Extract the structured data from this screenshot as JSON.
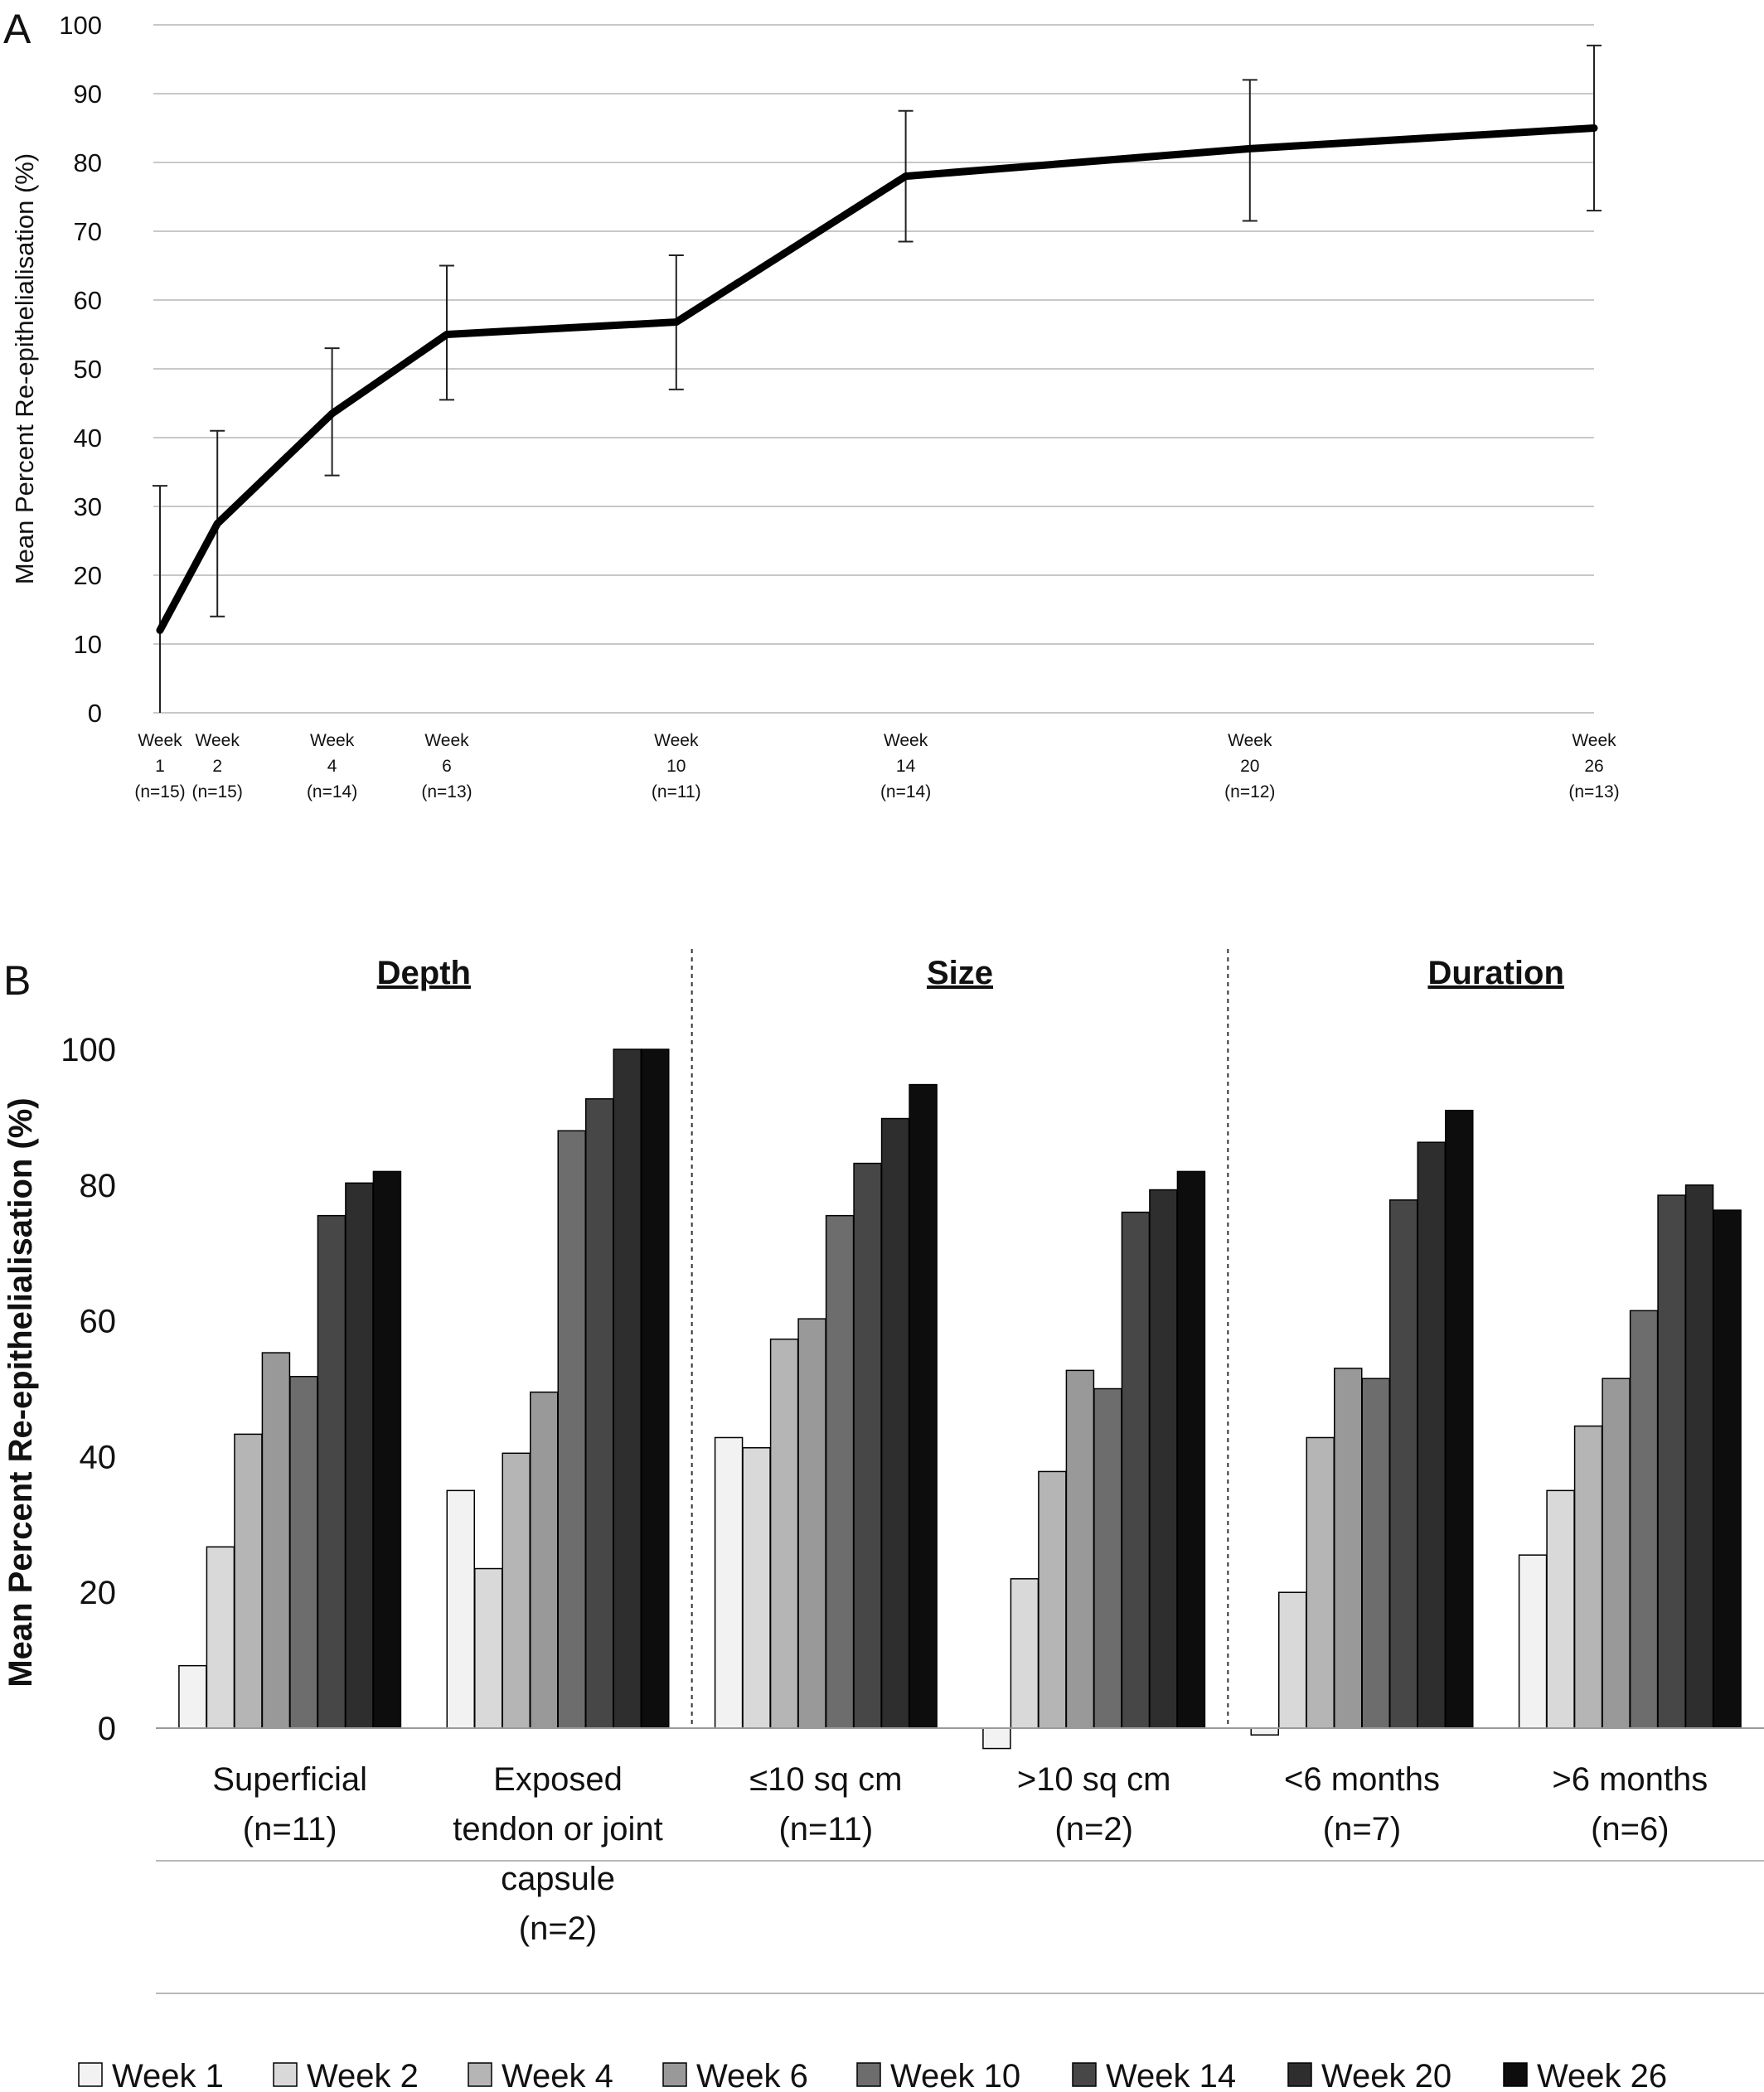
{
  "chart_data": [
    {
      "panel": "A",
      "type": "line",
      "ylabel": "Mean Percent Re-epithelialisation (%)",
      "ylim": [
        0,
        100
      ],
      "yticks": [
        0,
        10,
        20,
        30,
        40,
        50,
        60,
        70,
        80,
        90,
        100
      ],
      "grid": true,
      "x": [
        1,
        2,
        4,
        6,
        10,
        14,
        20,
        26
      ],
      "x_labels": [
        [
          "Week",
          "1",
          "(n=15)"
        ],
        [
          "Week",
          "2",
          "(n=15)"
        ],
        [
          "Week",
          "4",
          "(n=14)"
        ],
        [
          "Week",
          "6",
          "(n=13)"
        ],
        [
          "Week",
          "10",
          "(n=11)"
        ],
        [
          "Week",
          "14",
          "(n=14)"
        ],
        [
          "Week",
          "20",
          "(n=12)"
        ],
        [
          "Week",
          "26",
          "(n=13)"
        ]
      ],
      "series": [
        {
          "values": [
            12,
            27.5,
            43.5,
            55,
            56.8,
            78,
            82,
            85
          ],
          "error_low": [
            0,
            14,
            34.5,
            45.5,
            47,
            68.5,
            71.5,
            73
          ],
          "error_high": [
            33,
            41,
            53,
            65,
            66.5,
            87.5,
            92,
            97
          ],
          "color": "#000000"
        }
      ]
    },
    {
      "panel": "B",
      "type": "bar",
      "ylabel": "Mean Percent Re-epithelialisation (%)",
      "ylim": [
        -5,
        100
      ],
      "yticks": [
        0,
        20,
        40,
        60,
        80,
        100
      ],
      "grid": false,
      "legend_position": "bottom",
      "groups": [
        {
          "title": "Depth",
          "categories": [
            0,
            1
          ]
        },
        {
          "title": "Size",
          "categories": [
            2,
            3
          ]
        },
        {
          "title": "Duration",
          "categories": [
            4,
            5
          ]
        }
      ],
      "categories": [
        [
          "Superficial",
          "(n=11)"
        ],
        [
          "Exposed",
          "tendon or joint",
          "capsule",
          "(n=2)"
        ],
        [
          "≤10 sq cm",
          "(n=11)"
        ],
        [
          ">10 sq cm",
          "(n=2)"
        ],
        [
          "<6 months",
          "(n=7)"
        ],
        [
          ">6 months",
          "(n=6)"
        ]
      ],
      "series": [
        {
          "name": "Week 1",
          "color": "#f2f2f2",
          "values": [
            9.2,
            35,
            42.8,
            -3,
            -1,
            25.5
          ]
        },
        {
          "name": "Week 2",
          "color": "#d9d9d9",
          "values": [
            26.7,
            23.5,
            41.3,
            22,
            20,
            35
          ]
        },
        {
          "name": "Week 4",
          "color": "#b5b5b5",
          "values": [
            43.3,
            40.5,
            57.3,
            37.8,
            42.8,
            44.5
          ]
        },
        {
          "name": "Week 6",
          "color": "#999999",
          "values": [
            55.3,
            49.5,
            60.3,
            52.7,
            53,
            51.5
          ]
        },
        {
          "name": "Week 10",
          "color": "#6d6d6d",
          "values": [
            51.8,
            88,
            75.5,
            50,
            51.5,
            61.5
          ]
        },
        {
          "name": "Week 14",
          "color": "#474747",
          "values": [
            75.5,
            92.7,
            83.2,
            76,
            77.8,
            78.5
          ]
        },
        {
          "name": "Week 20",
          "color": "#2e2e2e",
          "values": [
            80.3,
            100,
            89.8,
            79.3,
            86.3,
            80
          ]
        },
        {
          "name": "Week 26",
          "color": "#0d0d0d",
          "values": [
            82,
            100,
            94.8,
            82,
            91,
            76.3
          ]
        }
      ]
    }
  ],
  "panel_labels": [
    "A",
    "B"
  ]
}
